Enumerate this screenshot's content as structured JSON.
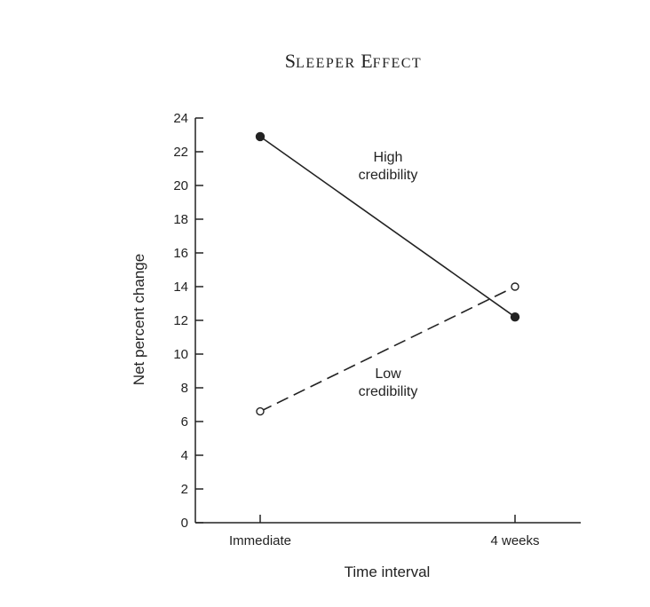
{
  "chart_data": {
    "type": "line",
    "title": "Sleeper Effect",
    "xlabel": "Time interval",
    "ylabel": "Net percent change",
    "categories": [
      "Immediate",
      "4 weeks"
    ],
    "ylim": [
      0,
      24
    ],
    "yticks": [
      0,
      2,
      4,
      6,
      8,
      10,
      12,
      14,
      16,
      18,
      20,
      22,
      24
    ],
    "grid": false,
    "legend": "none",
    "series": [
      {
        "name": "High credibility",
        "label_lines": [
          "High",
          "credibility"
        ],
        "values": [
          22.9,
          12.2
        ],
        "line_style": "solid",
        "marker": "filled-circle",
        "color": "#222222"
      },
      {
        "name": "Low credibility",
        "label_lines": [
          "Low",
          "credibility"
        ],
        "values": [
          6.6,
          14.0
        ],
        "line_style": "dashed",
        "marker": "open-circle",
        "color": "#222222"
      }
    ]
  }
}
